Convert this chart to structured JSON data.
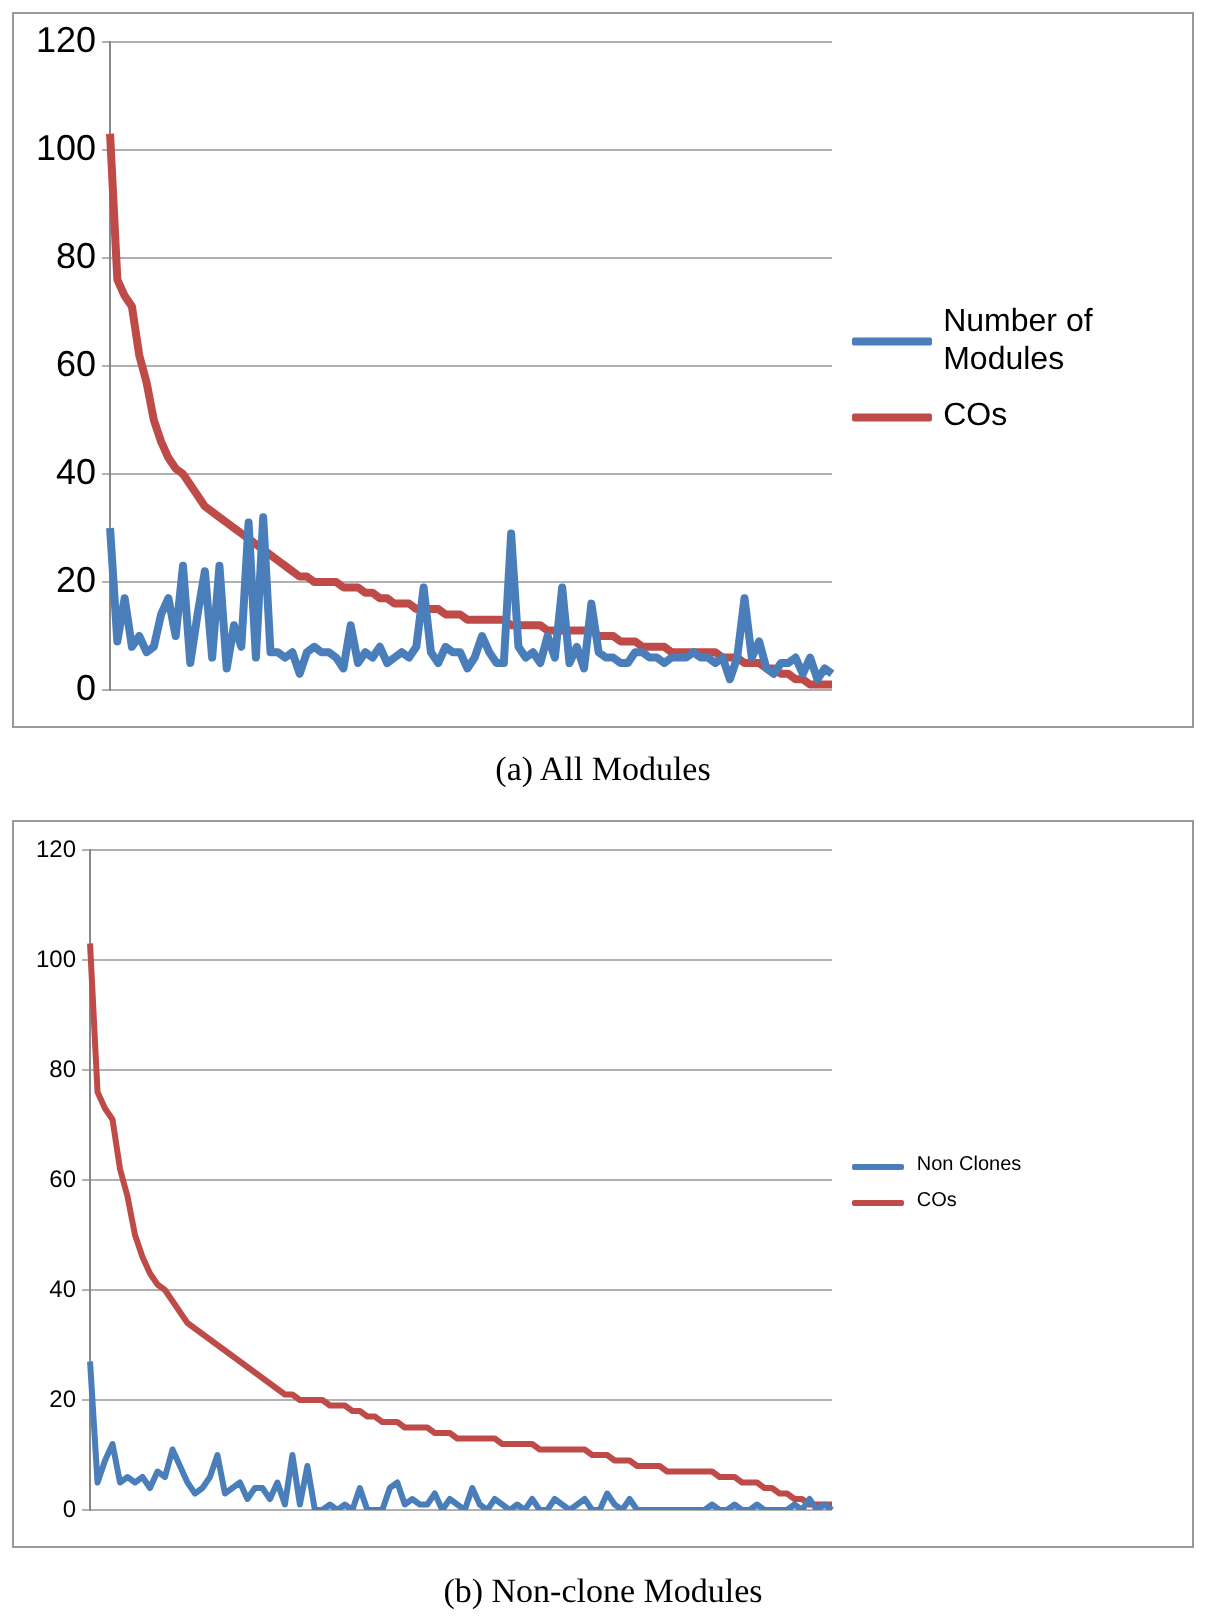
{
  "chart_data": [
    {
      "type": "line",
      "annotations": [
        "(a)  All Modules"
      ],
      "categories": [
        null,
        null,
        null,
        null,
        null,
        null,
        null,
        null,
        null,
        null,
        null,
        null,
        null,
        null,
        null,
        null,
        null,
        null,
        null,
        null,
        null,
        null,
        null,
        null,
        null,
        null,
        null,
        null,
        null,
        null,
        null,
        null,
        null,
        null,
        null,
        null,
        null,
        null,
        null,
        null,
        null,
        null,
        null,
        null,
        null,
        null,
        null,
        null,
        null,
        null,
        null,
        null,
        null,
        null,
        null,
        null,
        null,
        null,
        null,
        null,
        null,
        null,
        null,
        null,
        null,
        null,
        null,
        null,
        null,
        null,
        null,
        null,
        null,
        null,
        null,
        null,
        null,
        null,
        null,
        null,
        null,
        null,
        null,
        null,
        null,
        null,
        null,
        null,
        null,
        null,
        null,
        null,
        null,
        null,
        null,
        null,
        null,
        null,
        null,
        null
      ],
      "series": [
        {
          "name": "Number of Modules",
          "color": "#4a7ebb",
          "values": [
            30,
            9,
            17,
            8,
            10,
            7,
            8,
            14,
            17,
            10,
            23,
            5,
            14,
            22,
            6,
            23,
            4,
            12,
            8,
            31,
            6,
            32,
            7,
            7,
            6,
            7,
            3,
            7,
            8,
            7,
            7,
            6,
            4,
            12,
            5,
            7,
            6,
            8,
            5,
            6,
            7,
            6,
            8,
            19,
            7,
            5,
            8,
            7,
            7,
            4,
            6,
            10,
            7,
            5,
            5,
            29,
            8,
            6,
            7,
            5,
            10,
            6,
            19,
            5,
            8,
            4,
            16,
            7,
            6,
            6,
            5,
            5,
            7,
            7,
            6,
            6,
            5,
            6,
            6,
            6,
            7,
            6,
            6,
            5,
            6,
            2,
            6,
            17,
            6,
            9,
            4,
            3,
            5,
            5,
            6,
            3,
            6,
            2,
            4,
            3
          ]
        },
        {
          "name": "COs",
          "color": "#be4b48",
          "values": [
            103,
            76,
            73,
            71,
            62,
            57,
            50,
            46,
            43,
            41,
            40,
            38,
            36,
            34,
            33,
            32,
            31,
            30,
            29,
            28,
            27,
            26,
            25,
            24,
            23,
            22,
            21,
            21,
            20,
            20,
            20,
            20,
            19,
            19,
            19,
            18,
            18,
            17,
            17,
            16,
            16,
            16,
            15,
            15,
            15,
            15,
            14,
            14,
            14,
            13,
            13,
            13,
            13,
            13,
            13,
            12,
            12,
            12,
            12,
            12,
            11,
            11,
            11,
            11,
            11,
            11,
            11,
            10,
            10,
            10,
            9,
            9,
            9,
            8,
            8,
            8,
            8,
            7,
            7,
            7,
            7,
            7,
            7,
            7,
            6,
            6,
            6,
            5,
            5,
            5,
            4,
            4,
            3,
            3,
            2,
            2,
            1,
            1,
            1,
            1
          ]
        }
      ],
      "ylim": [
        0,
        120
      ],
      "yticks": [
        0,
        20,
        40,
        60,
        80,
        100,
        120
      ],
      "grid": "y",
      "legend": "right",
      "tick_labels": "y",
      "marker": "none",
      "line_style": "solid"
    },
    {
      "type": "line",
      "annotations": [
        "(b)  Non-clone Modules"
      ],
      "categories": [
        null,
        null,
        null,
        null,
        null,
        null,
        null,
        null,
        null,
        null,
        null,
        null,
        null,
        null,
        null,
        null,
        null,
        null,
        null,
        null,
        null,
        null,
        null,
        null,
        null,
        null,
        null,
        null,
        null,
        null,
        null,
        null,
        null,
        null,
        null,
        null,
        null,
        null,
        null,
        null,
        null,
        null,
        null,
        null,
        null,
        null,
        null,
        null,
        null,
        null,
        null,
        null,
        null,
        null,
        null,
        null,
        null,
        null,
        null,
        null,
        null,
        null,
        null,
        null,
        null,
        null,
        null,
        null,
        null,
        null,
        null,
        null,
        null,
        null,
        null,
        null,
        null,
        null,
        null,
        null,
        null,
        null,
        null,
        null,
        null,
        null,
        null,
        null,
        null,
        null,
        null,
        null,
        null,
        null,
        null,
        null,
        null,
        null,
        null,
        null
      ],
      "series": [
        {
          "name": "Non Clones",
          "color": "#4a7ebb",
          "values": [
            27,
            5,
            9,
            12,
            5,
            6,
            5,
            6,
            4,
            7,
            6,
            11,
            8,
            5,
            3,
            4,
            6,
            10,
            3,
            4,
            5,
            2,
            4,
            4,
            2,
            5,
            1,
            10,
            1,
            8,
            0,
            0,
            1,
            0,
            1,
            0,
            4,
            0,
            0,
            0,
            4,
            5,
            1,
            2,
            1,
            1,
            3,
            0,
            2,
            1,
            0,
            4,
            1,
            0,
            2,
            1,
            0,
            1,
            0,
            2,
            0,
            0,
            2,
            1,
            0,
            1,
            2,
            0,
            0,
            3,
            1,
            0,
            2,
            0,
            0,
            0,
            0,
            0,
            0,
            0,
            0,
            0,
            0,
            1,
            0,
            0,
            1,
            0,
            0,
            1,
            0,
            0,
            0,
            0,
            1,
            0,
            2,
            0,
            1,
            0
          ]
        },
        {
          "name": "COs",
          "color": "#be4b48",
          "values": [
            103,
            76,
            73,
            71,
            62,
            57,
            50,
            46,
            43,
            41,
            40,
            38,
            36,
            34,
            33,
            32,
            31,
            30,
            29,
            28,
            27,
            26,
            25,
            24,
            23,
            22,
            21,
            21,
            20,
            20,
            20,
            20,
            19,
            19,
            19,
            18,
            18,
            17,
            17,
            16,
            16,
            16,
            15,
            15,
            15,
            15,
            14,
            14,
            14,
            13,
            13,
            13,
            13,
            13,
            13,
            12,
            12,
            12,
            12,
            12,
            11,
            11,
            11,
            11,
            11,
            11,
            11,
            10,
            10,
            10,
            9,
            9,
            9,
            8,
            8,
            8,
            8,
            7,
            7,
            7,
            7,
            7,
            7,
            7,
            6,
            6,
            6,
            5,
            5,
            5,
            4,
            4,
            3,
            3,
            2,
            2,
            1,
            1,
            1,
            1
          ]
        }
      ],
      "ylim": [
        0,
        120
      ],
      "yticks": [
        0,
        20,
        40,
        60,
        80,
        100,
        120
      ],
      "grid": "y",
      "legend": "right",
      "tick_labels": "y",
      "marker": "none",
      "line_style": "solid"
    }
  ]
}
